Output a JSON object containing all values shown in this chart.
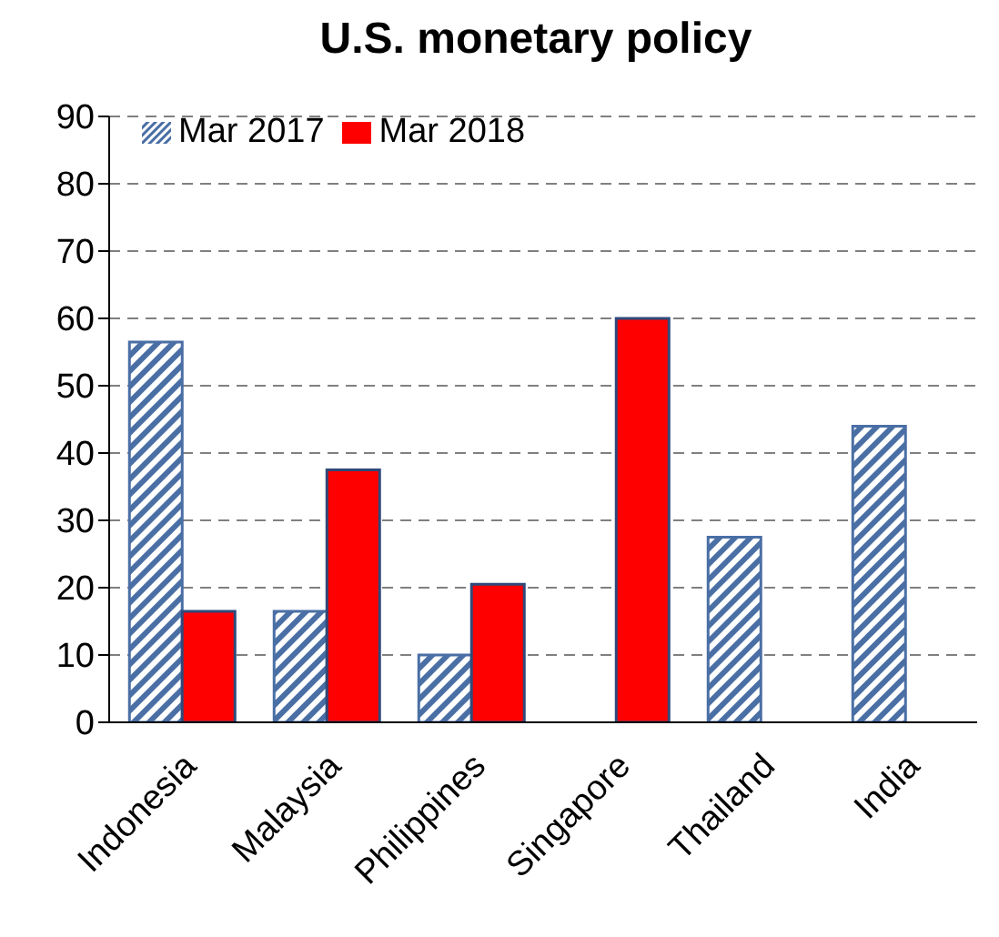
{
  "chart_data": {
    "type": "bar",
    "title": "U.S. monetary policy",
    "categories": [
      "Indonesia",
      "Malaysia",
      "Philippines",
      "Singapore",
      "Thailand",
      "India"
    ],
    "series": [
      {
        "name": "Mar 2017",
        "color": "#4a6fa5",
        "values": [
          56.5,
          16.5,
          10,
          null,
          27.5,
          44
        ]
      },
      {
        "name": "Mar 2018",
        "color": "#ff0000",
        "values": [
          16.5,
          37.5,
          20.5,
          60,
          null,
          null
        ]
      }
    ],
    "ylim": [
      0,
      90
    ],
    "yticks": [
      0,
      10,
      20,
      30,
      40,
      50,
      60,
      70,
      80,
      90
    ],
    "grid": "y",
    "legend": "top left"
  }
}
